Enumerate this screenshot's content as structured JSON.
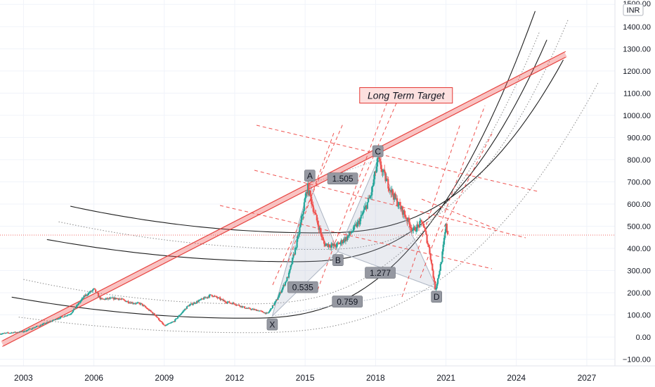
{
  "currency_badge": "INR",
  "top_value_label": "1500.00",
  "chart_data": {
    "type": "candlestick",
    "y_axis": {
      "ticks": [
        -100,
        0,
        100,
        200,
        300,
        400,
        500,
        600,
        700,
        800,
        900,
        1000,
        1100,
        1200,
        1300,
        1400,
        1500
      ],
      "tick_labels": [
        "−100.00",
        "0.00",
        "100.00",
        "200.00",
        "300.00",
        "400.00",
        "500.00",
        "600.00",
        "700.00",
        "800.00",
        "900.00",
        "1000.00",
        "1100.00",
        "1200.00",
        "1300.00",
        "1400.00",
        "1500.00"
      ],
      "range": [
        -130,
        1520
      ]
    },
    "x_axis": {
      "ticks": [
        2003,
        2006,
        2009,
        2012,
        2015,
        2018,
        2021,
        2024,
        2027
      ],
      "tick_labels": [
        "2003",
        "2006",
        "2009",
        "2012",
        "2015",
        "2018",
        "2021",
        "2024",
        "2027"
      ],
      "range": [
        2002,
        2028.2
      ]
    },
    "current_price": 460,
    "price_path": [
      [
        2002.0,
        15
      ],
      [
        2003.0,
        25
      ],
      [
        2004.0,
        65
      ],
      [
        2005.0,
        105
      ],
      [
        2005.6,
        185
      ],
      [
        2006.0,
        215
      ],
      [
        2006.3,
        170
      ],
      [
        2007.0,
        175
      ],
      [
        2007.6,
        155
      ],
      [
        2008.0,
        150
      ],
      [
        2008.6,
        100
      ],
      [
        2009.0,
        50
      ],
      [
        2009.4,
        70
      ],
      [
        2010.0,
        140
      ],
      [
        2010.7,
        175
      ],
      [
        2011.0,
        190
      ],
      [
        2011.6,
        160
      ],
      [
        2012.0,
        150
      ],
      [
        2012.5,
        130
      ],
      [
        2013.0,
        120
      ],
      [
        2013.4,
        105
      ],
      [
        2013.8,
        170
      ],
      [
        2014.3,
        280
      ],
      [
        2014.7,
        450
      ],
      [
        2015.1,
        680
      ],
      [
        2015.4,
        560
      ],
      [
        2015.8,
        420
      ],
      [
        2016.3,
        410
      ],
      [
        2016.8,
        450
      ],
      [
        2017.3,
        520
      ],
      [
        2017.8,
        640
      ],
      [
        2018.1,
        800
      ],
      [
        2018.4,
        720
      ],
      [
        2018.8,
        630
      ],
      [
        2019.2,
        560
      ],
      [
        2019.6,
        480
      ],
      [
        2020.0,
        520
      ],
      [
        2020.3,
        390
      ],
      [
        2020.55,
        210
      ],
      [
        2020.8,
        340
      ],
      [
        2021.0,
        500
      ],
      [
        2021.1,
        460
      ]
    ],
    "harmonic_pattern": {
      "points": [
        {
          "label": "X",
          "x": 2013.6,
          "y": 95
        },
        {
          "label": "A",
          "x": 2015.2,
          "y": 690
        },
        {
          "label": "B",
          "x": 2016.4,
          "y": 385
        },
        {
          "label": "C",
          "x": 2018.1,
          "y": 800
        },
        {
          "label": "D",
          "x": 2020.6,
          "y": 220
        }
      ],
      "ratios": [
        {
          "label": "0.535",
          "x": 2014.9,
          "y": 225
        },
        {
          "label": "1.505",
          "x": 2016.6,
          "y": 715
        },
        {
          "label": "1.277",
          "x": 2018.2,
          "y": 290
        },
        {
          "label": "0.759",
          "x": 2016.8,
          "y": 160
        }
      ]
    },
    "long_term_trendline": {
      "start": [
        2002.1,
        -30
      ],
      "end": [
        2026.1,
        1275
      ]
    },
    "annotation": {
      "text": "Long Term Target",
      "x": 2019.3,
      "y": 1090
    },
    "fib_arcs": [
      {
        "left": [
          2002.5,
          180
        ],
        "vertex": [
          2012.5,
          85
        ],
        "right": [
          2024.8,
          1470
        ],
        "style": "solid"
      },
      {
        "left": [
          2003.0,
          260
        ],
        "vertex": [
          2012.5,
          150
        ],
        "right": [
          2025.0,
          1380
        ],
        "style": "dotted"
      },
      {
        "left": [
          2004.0,
          440
        ],
        "vertex": [
          2014.5,
          340
        ],
        "right": [
          2025.3,
          1340
        ],
        "style": "solid"
      },
      {
        "left": [
          2004.5,
          520
        ],
        "vertex": [
          2015.5,
          395
        ],
        "right": [
          2026.2,
          1430
        ],
        "style": "dotted"
      },
      {
        "left": [
          2005.0,
          590
        ],
        "vertex": [
          2015.5,
          470
        ],
        "right": [
          2026.0,
          1250
        ],
        "style": "solid"
      },
      {
        "left": [
          2002.8,
          90
        ],
        "vertex": [
          2012.5,
          20
        ],
        "right": [
          2027.5,
          1150
        ],
        "style": "dotted"
      }
    ]
  }
}
